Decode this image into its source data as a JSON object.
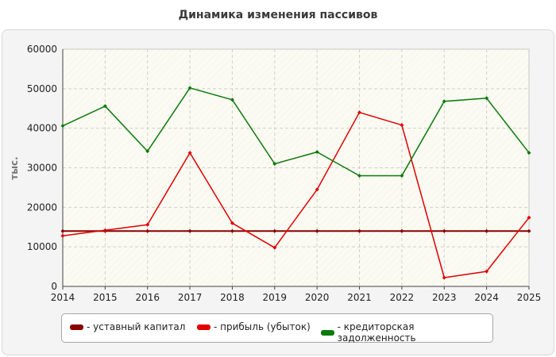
{
  "chart_data": {
    "type": "line",
    "title": "Динамика изменения пассивов",
    "ylabel": "тыс.",
    "xlabel": "",
    "categories": [
      "2014",
      "2015",
      "2016",
      "2017",
      "2018",
      "2019",
      "2020",
      "2021",
      "2022",
      "2023",
      "2024",
      "2025"
    ],
    "ylim": [
      0,
      60000
    ],
    "yticks": [
      0,
      10000,
      20000,
      30000,
      40000,
      50000,
      60000
    ],
    "grid": true,
    "legend_position": "bottom",
    "series": [
      {
        "name": "- уставный капитал",
        "color": "#8b0000",
        "values": [
          14000,
          14000,
          14000,
          14000,
          14000,
          14000,
          14000,
          14000,
          14000,
          14000,
          14000,
          14000
        ]
      },
      {
        "name": "- прибыль (убыток)",
        "color": "#e00000",
        "values": [
          12800,
          14200,
          15600,
          33800,
          16000,
          9800,
          24500,
          44000,
          40800,
          2200,
          3800,
          17400
        ]
      },
      {
        "name": "- кредиторская задолженность",
        "color": "#0a7a0a",
        "values": [
          40600,
          45600,
          34200,
          50200,
          47200,
          31000,
          34000,
          28000,
          28000,
          46800,
          47600,
          33800
        ]
      }
    ]
  }
}
